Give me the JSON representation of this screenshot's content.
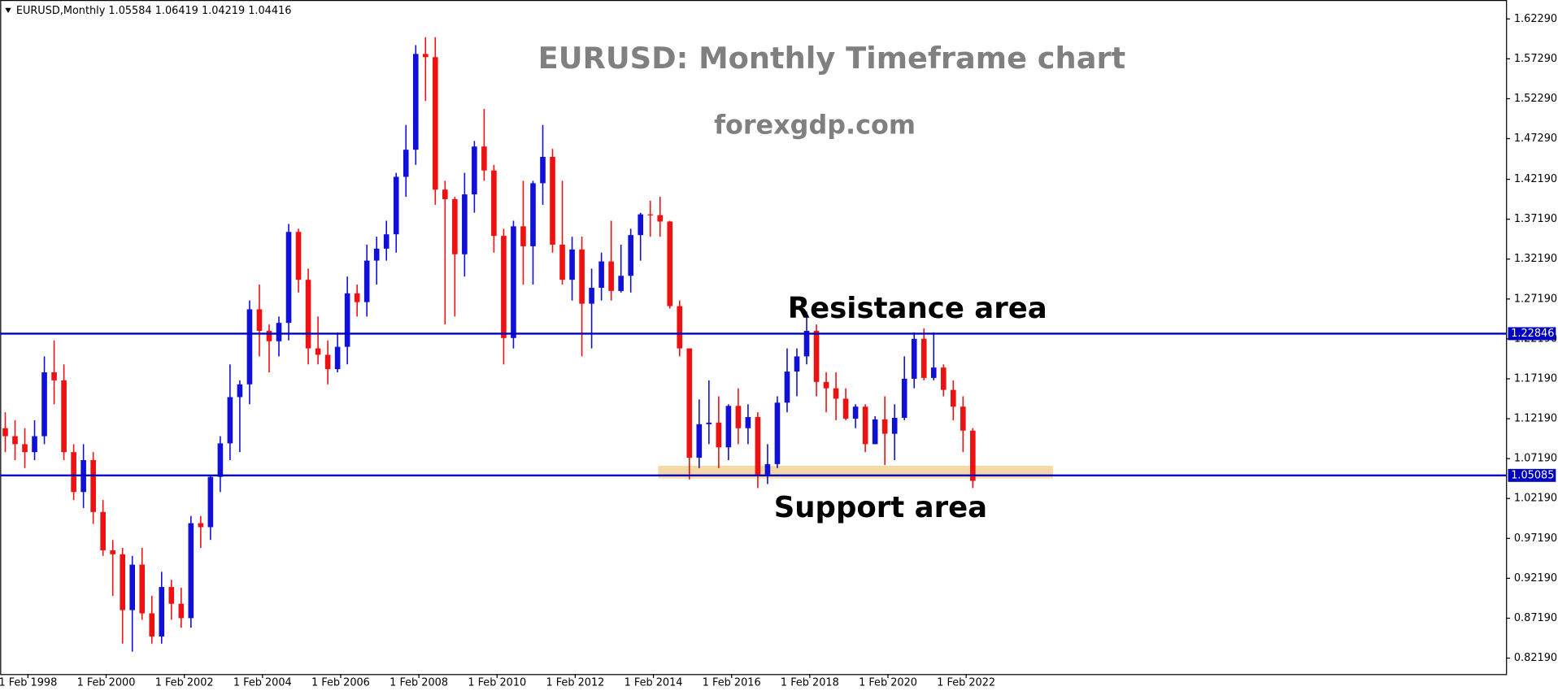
{
  "chart_data": {
    "type": "candlestick",
    "header": "EURUSD,Monthly  1.05584 1.06419 1.04219 1.04416",
    "title": "EURUSD: Monthly Timeframe chart",
    "subtitle": "forexgdp.com",
    "annotations": [
      "Resistance area",
      "Support area"
    ],
    "up_color": "#1010d8",
    "down_color": "#ee1111",
    "x": [
      1997.5,
      1997.75,
      1998,
      1998.25,
      1998.5,
      1998.75,
      1999,
      1999.25,
      1999.5,
      1999.75,
      2000,
      2000.25,
      2000.5,
      2000.75,
      2001,
      2001.25,
      2001.5,
      2001.75,
      2002,
      2002.25,
      2002.5,
      2002.75,
      2003,
      2003.25,
      2003.5,
      2003.75,
      2004,
      2004.25,
      2004.5,
      2004.75,
      2005,
      2005.25,
      2005.5,
      2005.75,
      2006,
      2006.25,
      2006.5,
      2006.75,
      2007,
      2007.25,
      2007.5,
      2007.75,
      2008,
      2008.25,
      2008.5,
      2008.75,
      2009,
      2009.25,
      2009.5,
      2009.75,
      2010,
      2010.25,
      2010.5,
      2010.75,
      2011,
      2011.25,
      2011.5,
      2011.75,
      2012,
      2012.25,
      2012.5,
      2012.75,
      2013,
      2013.25,
      2013.5,
      2013.75,
      2014,
      2014.25,
      2014.5,
      2014.75,
      2015,
      2015.25,
      2015.5,
      2015.75,
      2016,
      2016.25,
      2016.5,
      2016.75,
      2017,
      2017.25,
      2017.5,
      2017.75,
      2018,
      2018.25,
      2018.5,
      2018.75,
      2019,
      2019.25,
      2019.5,
      2019.75,
      2020,
      2020.25,
      2020.5,
      2020.75,
      2021,
      2021.25,
      2021.5,
      2021.75,
      2022,
      2022.25
    ],
    "open": [
      1.11,
      1.1,
      1.09,
      1.08,
      1.1,
      1.18,
      1.17,
      1.08,
      1.03,
      1.07,
      1.005,
      0.957,
      0.952,
      0.882,
      0.939,
      0.878,
      0.849,
      0.911,
      0.89,
      0.872,
      0.991,
      0.986,
      1.049,
      1.091,
      1.149,
      1.165,
      1.259,
      1.232,
      1.219,
      1.242,
      1.356,
      1.296,
      1.21,
      1.202,
      1.184,
      1.212,
      1.279,
      1.268,
      1.32,
      1.335,
      1.353,
      1.425,
      1.459,
      1.579,
      1.575,
      1.409,
      1.397,
      1.328,
      1.403,
      1.463,
      1.433,
      1.351,
      1.223,
      1.363,
      1.338,
      1.417,
      1.45,
      1.34,
      1.296,
      1.334,
      1.266,
      1.286,
      1.319,
      1.282,
      1.301,
      1.352,
      1.378,
      1.377,
      1.369,
      1.263,
      1.21,
      1.073,
      1.115,
      1.117,
      1.086,
      1.138,
      1.11,
      1.124,
      1.052,
      1.065,
      1.142,
      1.181,
      1.2,
      1.232,
      1.168,
      1.16,
      1.147,
      1.122,
      1.137,
      1.09,
      1.121,
      1.103,
      1.123,
      1.172,
      1.222,
      1.173,
      1.186,
      1.158,
      1.137,
      1.107
    ],
    "high": [
      1.13,
      1.12,
      1.11,
      1.12,
      1.2,
      1.22,
      1.19,
      1.09,
      1.09,
      1.08,
      1.02,
      0.97,
      0.96,
      0.95,
      0.96,
      0.9,
      0.93,
      0.92,
      0.91,
      1.0,
      1.0,
      1.05,
      1.1,
      1.19,
      1.17,
      1.27,
      1.29,
      1.24,
      1.25,
      1.366,
      1.36,
      1.31,
      1.25,
      1.22,
      1.23,
      1.3,
      1.29,
      1.34,
      1.35,
      1.37,
      1.43,
      1.49,
      1.59,
      1.6,
      1.6,
      1.42,
      1.4,
      1.43,
      1.47,
      1.51,
      1.44,
      1.36,
      1.37,
      1.42,
      1.42,
      1.49,
      1.46,
      1.42,
      1.35,
      1.35,
      1.31,
      1.33,
      1.37,
      1.34,
      1.36,
      1.38,
      1.395,
      1.4,
      1.37,
      1.27,
      1.21,
      1.146,
      1.17,
      1.15,
      1.14,
      1.16,
      1.14,
      1.13,
      1.09,
      1.15,
      1.21,
      1.21,
      1.256,
      1.24,
      1.18,
      1.18,
      1.16,
      1.14,
      1.14,
      1.125,
      1.15,
      1.14,
      1.2,
      1.23,
      1.235,
      1.23,
      1.19,
      1.17,
      1.15,
      1.11
    ],
    "low": [
      1.08,
      1.07,
      1.06,
      1.07,
      1.09,
      1.14,
      1.07,
      1.02,
      1.01,
      0.99,
      0.95,
      0.9,
      0.84,
      0.83,
      0.87,
      0.84,
      0.84,
      0.87,
      0.86,
      0.86,
      0.96,
      0.97,
      1.03,
      1.07,
      1.08,
      1.14,
      1.2,
      1.18,
      1.2,
      1.22,
      1.28,
      1.19,
      1.19,
      1.165,
      1.18,
      1.19,
      1.25,
      1.25,
      1.29,
      1.32,
      1.33,
      1.4,
      1.44,
      1.52,
      1.39,
      1.24,
      1.25,
      1.3,
      1.38,
      1.42,
      1.33,
      1.19,
      1.21,
      1.29,
      1.29,
      1.39,
      1.33,
      1.29,
      1.27,
      1.2,
      1.21,
      1.27,
      1.27,
      1.28,
      1.28,
      1.32,
      1.35,
      1.35,
      1.26,
      1.2,
      1.046,
      1.06,
      1.09,
      1.06,
      1.07,
      1.09,
      1.09,
      1.035,
      1.04,
      1.06,
      1.13,
      1.15,
      1.19,
      1.15,
      1.13,
      1.12,
      1.12,
      1.11,
      1.08,
      1.09,
      1.064,
      1.07,
      1.12,
      1.16,
      1.17,
      1.17,
      1.15,
      1.12,
      1.08,
      1.035
    ],
    "close": [
      1.1,
      1.09,
      1.08,
      1.1,
      1.18,
      1.17,
      1.08,
      1.03,
      1.07,
      1.005,
      0.957,
      0.952,
      0.882,
      0.939,
      0.878,
      0.849,
      0.911,
      0.89,
      0.872,
      0.991,
      0.986,
      1.049,
      1.091,
      1.149,
      1.165,
      1.259,
      1.232,
      1.219,
      1.242,
      1.356,
      1.296,
      1.21,
      1.202,
      1.184,
      1.212,
      1.279,
      1.268,
      1.32,
      1.335,
      1.353,
      1.425,
      1.459,
      1.579,
      1.575,
      1.409,
      1.397,
      1.328,
      1.403,
      1.463,
      1.433,
      1.351,
      1.223,
      1.363,
      1.338,
      1.417,
      1.45,
      1.34,
      1.296,
      1.334,
      1.266,
      1.286,
      1.319,
      1.282,
      1.301,
      1.352,
      1.378,
      1.377,
      1.369,
      1.263,
      1.21,
      1.073,
      1.115,
      1.117,
      1.086,
      1.138,
      1.11,
      1.124,
      1.052,
      1.065,
      1.142,
      1.181,
      1.2,
      1.232,
      1.168,
      1.16,
      1.147,
      1.122,
      1.137,
      1.09,
      1.121,
      1.103,
      1.123,
      1.172,
      1.222,
      1.173,
      1.186,
      1.158,
      1.137,
      1.107,
      1.044
    ],
    "hlines": [
      1.22846,
      1.05085
    ],
    "hline_color": "#0000c0",
    "zone": {
      "from": 1.047,
      "to": 1.063,
      "x": [
        2014.2,
        2024.3
      ],
      "color": "#f5d9a8"
    },
    "xlim": [
      1997.37,
      2035.89
    ],
    "xticks": [
      {
        "value": 1998.08,
        "label": "1 Feb 1998"
      },
      {
        "value": 2000.08,
        "label": "1 Feb 2000"
      },
      {
        "value": 2002.08,
        "label": "1 Feb 2002"
      },
      {
        "value": 2004.08,
        "label": "1 Feb 2004"
      },
      {
        "value": 2006.08,
        "label": "1 Feb 2006"
      },
      {
        "value": 2008.08,
        "label": "1 Feb 2008"
      },
      {
        "value": 2010.08,
        "label": "1 Feb 2010"
      },
      {
        "value": 2012.08,
        "label": "1 Feb 2012"
      },
      {
        "value": 2014.08,
        "label": "1 Feb 2014"
      },
      {
        "value": 2016.08,
        "label": "1 Feb 2016"
      },
      {
        "value": 2018.08,
        "label": "1 Feb 2018"
      },
      {
        "value": 2020.08,
        "label": "1 Feb 2020"
      },
      {
        "value": 2022.08,
        "label": "1 Feb 2022"
      }
    ],
    "ylim": [
      0.8019,
      1.6466
    ],
    "yticks": [
      {
        "value": 0.8219,
        "label": "0.82190"
      },
      {
        "value": 0.8719,
        "label": "0.87190"
      },
      {
        "value": 0.9219,
        "label": "0.92190"
      },
      {
        "value": 0.9719,
        "label": "0.97190"
      },
      {
        "value": 1.0219,
        "label": "1.02190"
      },
      {
        "value": 1.0719,
        "label": "1.07190"
      },
      {
        "value": 1.1219,
        "label": "1.12190"
      },
      {
        "value": 1.1719,
        "label": "1.17190"
      },
      {
        "value": 1.2219,
        "label": "1.22190"
      },
      {
        "value": 1.2719,
        "label": "1.27190"
      },
      {
        "value": 1.3219,
        "label": "1.32190"
      },
      {
        "value": 1.3719,
        "label": "1.37190"
      },
      {
        "value": 1.4219,
        "label": "1.42190"
      },
      {
        "value": 1.4729,
        "label": "1.47290"
      },
      {
        "value": 1.5229,
        "label": "1.52290"
      },
      {
        "value": 1.5729,
        "label": "1.57290"
      },
      {
        "value": 1.6229,
        "label": "1.62290"
      }
    ]
  }
}
